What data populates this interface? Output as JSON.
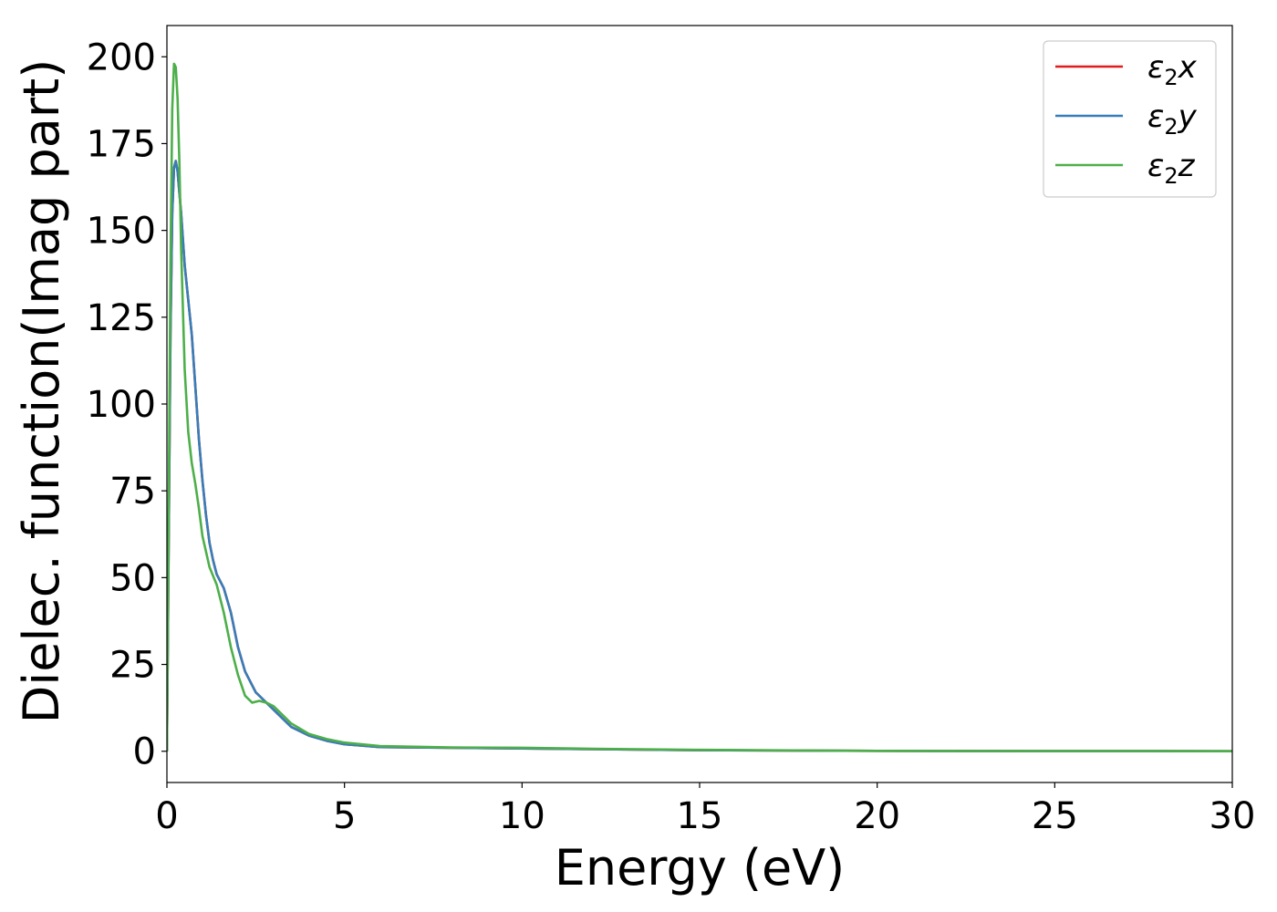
{
  "chart_data": {
    "type": "line",
    "title": "",
    "xlabel": "Energy (eV)",
    "ylabel": "Dielec. function(Imag part)",
    "xlim": [
      0,
      30
    ],
    "ylim": [
      -9,
      209
    ],
    "xticks": [
      0,
      5,
      10,
      15,
      20,
      25,
      30
    ],
    "xtick_labels": [
      "0",
      "5",
      "10",
      "15",
      "20",
      "25",
      "30"
    ],
    "yticks": [
      0,
      25,
      50,
      75,
      100,
      125,
      150,
      175,
      200
    ],
    "ytick_labels": [
      "0",
      "25",
      "50",
      "75",
      "100",
      "125",
      "150",
      "175",
      "200"
    ],
    "grid": false,
    "legend_position": "top-right",
    "series": [
      {
        "name": "ε₂x",
        "legend_base": "ε",
        "legend_sub": "2",
        "legend_suffix": "x",
        "color": "#e41a1c",
        "x": [
          0,
          0.05,
          0.1,
          0.15,
          0.2,
          0.25,
          0.3,
          0.4,
          0.5,
          0.6,
          0.7,
          0.8,
          0.9,
          1.0,
          1.1,
          1.2,
          1.3,
          1.4,
          1.5,
          1.6,
          1.8,
          2.0,
          2.2,
          2.5,
          2.8,
          3.0,
          3.2,
          3.5,
          4.0,
          4.5,
          5.0,
          6.0,
          7.0,
          8.0,
          10.0,
          12.0,
          15.0,
          20.0,
          25.0,
          30.0
        ],
        "y": [
          0,
          60,
          120,
          155,
          168,
          170,
          167,
          155,
          140,
          130,
          120,
          105,
          90,
          78,
          68,
          60,
          55,
          51,
          49,
          47,
          40,
          30,
          23,
          17,
          14,
          12,
          10,
          7,
          4.5,
          3,
          2,
          1.2,
          1.1,
          1.0,
          0.8,
          0.6,
          0.3,
          0.1,
          0.05,
          0.02
        ]
      },
      {
        "name": "ε₂y",
        "legend_base": "ε",
        "legend_sub": "2",
        "legend_suffix": "y",
        "color": "#377eb8",
        "x": [
          0,
          0.05,
          0.1,
          0.15,
          0.2,
          0.25,
          0.3,
          0.4,
          0.5,
          0.6,
          0.7,
          0.8,
          0.9,
          1.0,
          1.1,
          1.2,
          1.3,
          1.4,
          1.5,
          1.6,
          1.8,
          2.0,
          2.2,
          2.5,
          2.8,
          3.0,
          3.2,
          3.5,
          4.0,
          4.5,
          5.0,
          6.0,
          7.0,
          8.0,
          10.0,
          12.0,
          15.0,
          20.0,
          25.0,
          30.0
        ],
        "y": [
          0,
          60,
          120,
          155,
          168,
          170,
          167,
          155,
          140,
          130,
          120,
          105,
          90,
          78,
          68,
          60,
          55,
          51,
          49,
          47,
          40,
          30,
          23,
          17,
          14,
          12,
          10,
          7,
          4.5,
          3,
          2,
          1.2,
          1.1,
          1.0,
          0.8,
          0.6,
          0.3,
          0.1,
          0.05,
          0.02
        ]
      },
      {
        "name": "ε₂z",
        "legend_base": "ε",
        "legend_sub": "2",
        "legend_suffix": "z",
        "color": "#4daf4a",
        "x": [
          0,
          0.05,
          0.1,
          0.15,
          0.2,
          0.25,
          0.3,
          0.35,
          0.4,
          0.5,
          0.6,
          0.7,
          0.8,
          0.9,
          1.0,
          1.2,
          1.4,
          1.6,
          1.8,
          2.0,
          2.2,
          2.4,
          2.6,
          2.8,
          3.0,
          3.2,
          3.5,
          4.0,
          4.5,
          5.0,
          6.0,
          7.0,
          8.0,
          10.0,
          12.0,
          15.0,
          20.0,
          25.0,
          30.0
        ],
        "y": [
          0,
          70,
          140,
          185,
          198,
          197,
          188,
          170,
          145,
          110,
          92,
          83,
          77,
          70,
          62,
          53,
          48,
          40,
          30,
          22,
          16,
          14,
          14.5,
          14,
          13,
          11,
          8,
          5,
          3.5,
          2.5,
          1.5,
          1.3,
          1.1,
          1.0,
          0.7,
          0.4,
          0.1,
          0.05,
          0.02
        ]
      }
    ]
  }
}
